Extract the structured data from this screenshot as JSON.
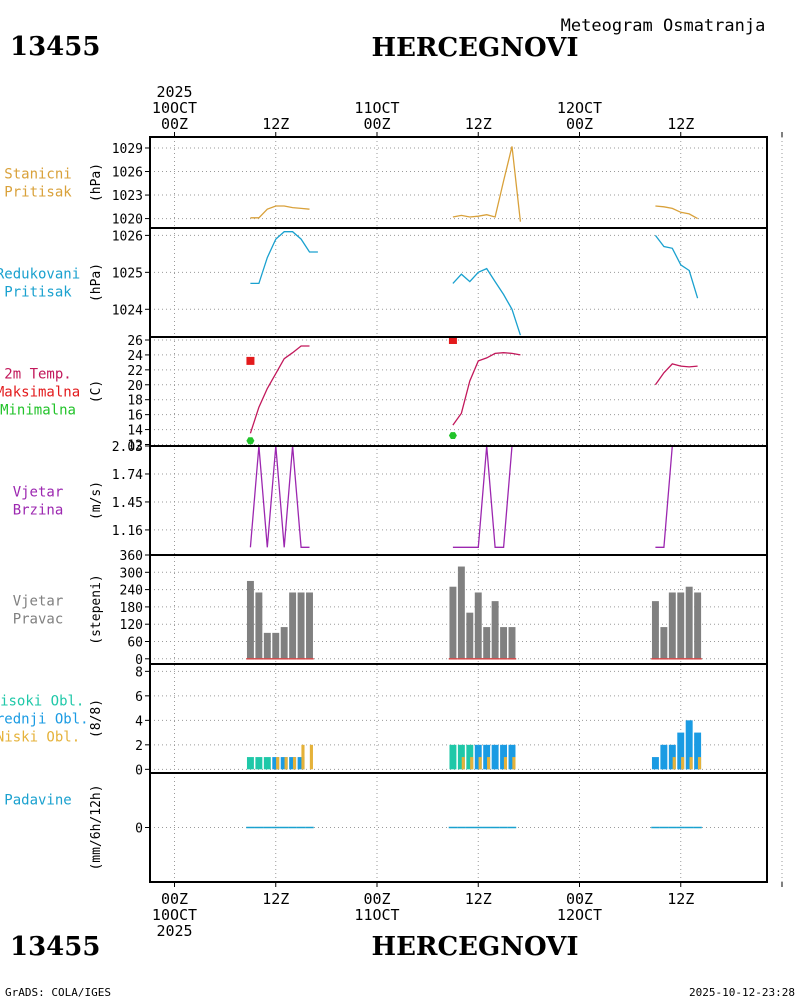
{
  "header": {
    "station_id": "13455",
    "station_name": "HERCEGNOVI",
    "subtitle": "Meteogram Osmatranja"
  },
  "footer": {
    "station_id": "13455",
    "station_name": "HERCEGNOVI",
    "credit": "GrADS: COLA/IGES",
    "timestamp": "2025-10-12-23:28"
  },
  "time_axis": {
    "top_labels": [
      {
        "lines": [
          "2025",
          "10OCT",
          "00Z"
        ],
        "day": 0,
        "hour": 0
      },
      {
        "lines": [
          "12Z"
        ],
        "day": 0,
        "hour": 12
      },
      {
        "lines": [
          "11OCT",
          "00Z"
        ],
        "day": 1,
        "hour": 0
      },
      {
        "lines": [
          "12Z"
        ],
        "day": 1,
        "hour": 12
      },
      {
        "lines": [
          "12OCT",
          "00Z"
        ],
        "day": 2,
        "hour": 0
      },
      {
        "lines": [
          "12Z"
        ],
        "day": 2,
        "hour": 12
      }
    ],
    "bottom_labels": [
      {
        "lines": [
          "00Z",
          "10OCT",
          "2025"
        ],
        "day": 0,
        "hour": 0
      },
      {
        "lines": [
          "12Z"
        ],
        "day": 0,
        "hour": 12
      },
      {
        "lines": [
          "00Z",
          "11OCT"
        ],
        "day": 1,
        "hour": 0
      },
      {
        "lines": [
          "12Z"
        ],
        "day": 1,
        "hour": 12
      },
      {
        "lines": [
          "00Z",
          "12OCT"
        ],
        "day": 2,
        "hour": 0
      },
      {
        "lines": [
          "12Z"
        ],
        "day": 2,
        "hour": 12
      }
    ]
  },
  "colors": {
    "pressure": "#d9a13a",
    "mslp": "#1aa1cf",
    "temp": "#c2185b",
    "tmax": "#e31a1c",
    "tmin": "#22c32a",
    "wind": "#9c27b0",
    "bars": "#808080",
    "dirbase": "#d24a4a",
    "cloud_high": "#1fc8a8",
    "cloud_mid": "#1a9be3",
    "cloud_low": "#e5b23a",
    "precip": "#1aa1cf",
    "grid": "#9a9a9a"
  },
  "chart_data": [
    {
      "type": "line",
      "name": "stanicni-pritisak",
      "label": [
        "Stanicni",
        "Pritisak"
      ],
      "ylabel": "(hPa)",
      "ylim": [
        1018.8,
        1030.4
      ],
      "yticks": [
        "1020",
        "1023",
        "1026",
        "1029"
      ],
      "series": [
        {
          "name": "Stanicni pritisak",
          "color": "pressure",
          "segments": [
            [
              [
                9,
                1020.1
              ],
              [
                10,
                1020.1
              ],
              [
                11,
                1021.2
              ],
              [
                12,
                1021.6
              ],
              [
                13,
                1021.6
              ],
              [
                14,
                1021.4
              ],
              [
                15,
                1021.3
              ],
              [
                16,
                1021.2
              ]
            ],
            [
              [
                33,
                1020.2
              ],
              [
                34,
                1020.4
              ],
              [
                35,
                1020.2
              ],
              [
                36,
                1020.3
              ],
              [
                37,
                1020.5
              ],
              [
                38,
                1020.2
              ],
              [
                39,
                1024.8
              ],
              [
                40,
                1029.2
              ],
              [
                41,
                1019.6
              ]
            ],
            [
              [
                57,
                1021.6
              ],
              [
                58,
                1021.5
              ],
              [
                59,
                1021.3
              ],
              [
                60,
                1020.8
              ],
              [
                61,
                1020.6
              ],
              [
                62,
                1020.0
              ]
            ]
          ]
        }
      ]
    },
    {
      "type": "line",
      "name": "redukovani-pritisak",
      "label": [
        "Redukovani",
        "Pritisak"
      ],
      "ylabel": "(hPa)",
      "ylim": [
        1023.25,
        1026.2
      ],
      "yticks": [
        "1024",
        "1025",
        "1026"
      ],
      "series": [
        {
          "name": "Redukovani pritisak",
          "color": "mslp",
          "segments": [
            [
              [
                9,
                1024.7
              ],
              [
                10,
                1024.7
              ],
              [
                11,
                1025.4
              ],
              [
                12,
                1025.9
              ],
              [
                13,
                1026.1
              ],
              [
                14,
                1026.1
              ],
              [
                15,
                1025.9
              ],
              [
                16,
                1025.55
              ],
              [
                17,
                1025.55
              ]
            ],
            [
              [
                33,
                1024.7
              ],
              [
                34,
                1024.95
              ],
              [
                35,
                1024.75
              ],
              [
                36,
                1025.0
              ],
              [
                37,
                1025.1
              ],
              [
                38,
                1024.75
              ],
              [
                39,
                1024.4
              ],
              [
                40,
                1024.0
              ],
              [
                41,
                1023.3
              ]
            ],
            [
              [
                57,
                1026.0
              ],
              [
                58,
                1025.7
              ],
              [
                59,
                1025.65
              ],
              [
                60,
                1025.2
              ],
              [
                61,
                1025.05
              ],
              [
                62,
                1024.3
              ]
            ]
          ]
        }
      ]
    },
    {
      "type": "line",
      "name": "temperatura",
      "label": [
        "2m Temp.",
        "Maksimalna",
        "Minimalna"
      ],
      "label_colors": [
        "temp",
        "tmax",
        "tmin"
      ],
      "ylabel": "(C)",
      "ylim": [
        11.8,
        26.4
      ],
      "yticks": [
        "12",
        "14",
        "16",
        "18",
        "20",
        "22",
        "24",
        "26"
      ],
      "series": [
        {
          "name": "2m Temp.",
          "color": "temp",
          "segments": [
            [
              [
                9,
                13.5
              ],
              [
                10,
                17.0
              ],
              [
                11,
                19.5
              ],
              [
                12,
                21.5
              ],
              [
                13,
                23.5
              ],
              [
                14,
                24.3
              ],
              [
                15,
                25.2
              ],
              [
                16,
                25.2
              ]
            ],
            [
              [
                33,
                14.6
              ],
              [
                34,
                16.2
              ],
              [
                35,
                20.5
              ],
              [
                36,
                23.2
              ],
              [
                37,
                23.6
              ],
              [
                38,
                24.2
              ],
              [
                39,
                24.3
              ],
              [
                40,
                24.2
              ],
              [
                41,
                24.0
              ]
            ],
            [
              [
                57,
                20.0
              ],
              [
                58,
                21.6
              ],
              [
                59,
                22.8
              ],
              [
                60,
                22.5
              ],
              [
                61,
                22.4
              ],
              [
                62,
                22.5
              ]
            ]
          ]
        }
      ],
      "markers": [
        {
          "name": "Maksimalna",
          "shape": "square",
          "color": "tmax",
          "points": [
            [
              9,
              23.2
            ],
            [
              33,
              26.0
            ]
          ]
        },
        {
          "name": "Minimalna",
          "shape": "hex",
          "color": "tmin",
          "points": [
            [
              9,
              12.5
            ],
            [
              33,
              13.2
            ]
          ]
        }
      ]
    },
    {
      "type": "line",
      "name": "vjetar-brzina",
      "label": [
        "Vjetar",
        "Brzina"
      ],
      "ylabel": "(m/s)",
      "ylim": [
        0.9,
        2.03
      ],
      "yticks": [
        "1.16",
        "1.45",
        "1.74",
        "2.03"
      ],
      "series": [
        {
          "name": "Brzina vjetra",
          "color": "wind",
          "segments": [
            [
              [
                9,
                0.98
              ],
              [
                10,
                2.03
              ],
              [
                11,
                0.98
              ],
              [
                12,
                2.03
              ],
              [
                13,
                0.98
              ],
              [
                14,
                2.03
              ],
              [
                15,
                0.98
              ],
              [
                16,
                0.98
              ]
            ],
            [
              [
                33,
                0.98
              ],
              [
                34,
                0.98
              ],
              [
                35,
                0.98
              ],
              [
                36,
                0.98
              ],
              [
                37,
                2.03
              ],
              [
                38,
                0.98
              ],
              [
                39,
                0.98
              ],
              [
                40,
                2.03
              ]
            ],
            [
              [
                57,
                0.98
              ],
              [
                58,
                0.98
              ],
              [
                59,
                2.03
              ],
              [
                60,
                2.03
              ],
              [
                61,
                2.03
              ],
              [
                62,
                2.03
              ]
            ]
          ]
        }
      ]
    },
    {
      "type": "bar",
      "name": "vjetar-pravac",
      "label": [
        "Vjetar",
        "Pravac"
      ],
      "ylabel": "(stepeni)",
      "ylim": [
        -18,
        360
      ],
      "yticks": [
        "0",
        "60",
        "120",
        "180",
        "240",
        "300",
        "360"
      ],
      "series": [
        {
          "name": "Pravac",
          "color": "bars",
          "bars": [
            [
              9,
              270
            ],
            [
              10,
              230
            ],
            [
              11,
              90
            ],
            [
              12,
              90
            ],
            [
              13,
              110
            ],
            [
              14,
              230
            ],
            [
              15,
              230
            ],
            [
              16,
              230
            ],
            [
              33,
              250
            ],
            [
              34,
              320
            ],
            [
              35,
              160
            ],
            [
              36,
              230
            ],
            [
              37,
              110
            ],
            [
              38,
              200
            ],
            [
              39,
              110
            ],
            [
              40,
              110
            ],
            [
              57,
              200
            ],
            [
              58,
              110
            ],
            [
              59,
              230
            ],
            [
              60,
              230
            ],
            [
              61,
              250
            ],
            [
              62,
              230
            ]
          ]
        }
      ]
    },
    {
      "type": "bar",
      "name": "oblacnost",
      "label": [
        "Visoki Obl.",
        "Srednji Obl.",
        "Niski Obl."
      ],
      "label_colors": [
        "cloud_high",
        "cloud_mid",
        "cloud_low"
      ],
      "ylabel": "(8/8)",
      "ylim": [
        -0.3,
        8.6
      ],
      "yticks": [
        "0",
        "2",
        "4",
        "6",
        "8"
      ],
      "series": [
        {
          "name": "Visoki Obl.",
          "color": "cloud_high",
          "bars": [
            [
              9,
              1
            ],
            [
              10,
              1
            ],
            [
              11,
              1
            ],
            [
              33,
              2
            ],
            [
              34,
              2
            ],
            [
              35,
              2
            ]
          ]
        },
        {
          "name": "Srednji Obl.",
          "color": "cloud_mid",
          "bars": [
            [
              12,
              1
            ],
            [
              13,
              1
            ],
            [
              14,
              1
            ],
            [
              15,
              1
            ],
            [
              36,
              2
            ],
            [
              37,
              2
            ],
            [
              38,
              2
            ],
            [
              39,
              2
            ],
            [
              40,
              2
            ],
            [
              57,
              1
            ],
            [
              58,
              2
            ],
            [
              59,
              2
            ],
            [
              60,
              3
            ],
            [
              61,
              4
            ],
            [
              62,
              3
            ]
          ]
        },
        {
          "name": "Niski Obl.",
          "color": "cloud_low",
          "bars": [
            [
              12,
              1
            ],
            [
              13,
              1
            ],
            [
              14,
              1
            ],
            [
              15,
              2
            ],
            [
              16,
              2
            ],
            [
              34,
              1
            ],
            [
              35,
              1
            ],
            [
              36,
              1
            ],
            [
              37,
              1
            ],
            [
              39,
              1
            ],
            [
              40,
              1
            ],
            [
              59,
              1
            ],
            [
              60,
              1
            ],
            [
              61,
              1
            ],
            [
              62,
              1
            ]
          ]
        }
      ]
    },
    {
      "type": "bar",
      "name": "padavine",
      "label": [
        "Padavine"
      ],
      "ylabel": "(mm/6h/12h)",
      "ylim": [
        -1,
        1
      ],
      "yticks": [
        "0"
      ],
      "series": [
        {
          "name": "Padavine",
          "color": "precip",
          "bars": [
            [
              9,
              0
            ],
            [
              10,
              0
            ],
            [
              11,
              0
            ],
            [
              12,
              0
            ],
            [
              13,
              0
            ],
            [
              14,
              0
            ],
            [
              15,
              0
            ],
            [
              16,
              0
            ],
            [
              33,
              0
            ],
            [
              34,
              0
            ],
            [
              35,
              0
            ],
            [
              36,
              0
            ],
            [
              37,
              0
            ],
            [
              38,
              0
            ],
            [
              39,
              0
            ],
            [
              40,
              0
            ],
            [
              57,
              0
            ],
            [
              58,
              0
            ],
            [
              59,
              0
            ],
            [
              60,
              0
            ],
            [
              61,
              0
            ],
            [
              62,
              0
            ]
          ]
        }
      ]
    }
  ]
}
